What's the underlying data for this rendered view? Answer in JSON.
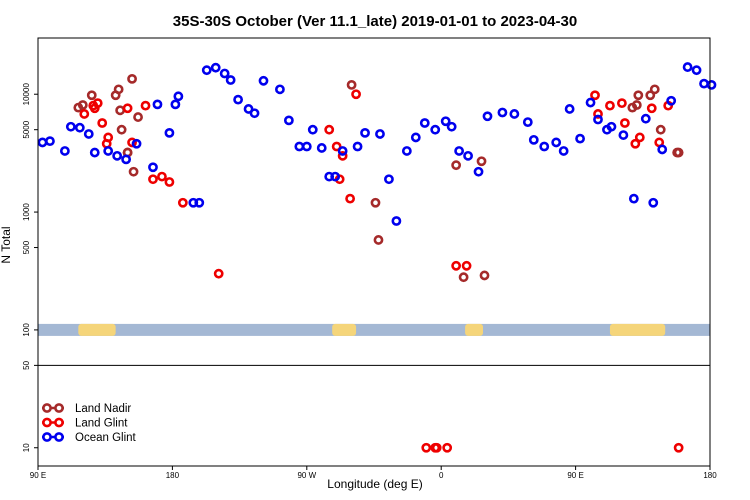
{
  "chart_data": {
    "type": "scatter",
    "title": "35S-30S October (Ver 11.1_late)   2019-01-01 to 2023-04-30",
    "xlabel": "Longitude (deg E)",
    "ylabel": "N Total",
    "x_axis_start_deg": 90,
    "x_axis_span_deg": 450,
    "xlim": [
      90,
      540
    ],
    "ylim": [
      7,
      30000
    ],
    "y_scale": "log",
    "x_ticks": [
      {
        "value": 90,
        "label": "90 E"
      },
      {
        "value": 180,
        "label": "180"
      },
      {
        "value": 270,
        "label": "90 W"
      },
      {
        "value": 360,
        "label": "0"
      },
      {
        "value": 450,
        "label": "90 E"
      },
      {
        "value": 540,
        "label": "180"
      }
    ],
    "y_ticks": [
      {
        "value": 10,
        "label": "10"
      },
      {
        "value": 50,
        "label": "50"
      },
      {
        "value": 100,
        "label": "100"
      },
      {
        "value": 500,
        "label": "500"
      },
      {
        "value": 1000,
        "label": "1000"
      },
      {
        "value": 5000,
        "label": "5000"
      },
      {
        "value": 10000,
        "label": "10000"
      }
    ],
    "divider_y": 50,
    "coastline_y": 100,
    "coastline_colors": {
      "ocean": "#a4b8d4",
      "land": "#f5d57a"
    },
    "land_segments": [
      [
        117,
        142
      ],
      [
        287,
        303
      ],
      [
        376,
        388
      ],
      [
        473,
        510
      ]
    ],
    "legend_position": "bottom-left",
    "series": [
      {
        "name": "Land Nadir",
        "color": "#a52a2a",
        "x": [
          117,
          120,
          126,
          142,
          144,
          145,
          146,
          150,
          150,
          153,
          154,
          157,
          300,
          316,
          318,
          370,
          375,
          387,
          389,
          488,
          491,
          492,
          500,
          503,
          507,
          518,
          519
        ],
        "y": [
          7700,
          8100,
          9800,
          9800,
          11000,
          7300,
          5000,
          3200,
          3200,
          13500,
          2200,
          6400,
          12000,
          1200,
          580,
          2500,
          280,
          2700,
          290,
          7700,
          8100,
          9800,
          9800,
          11000,
          5000,
          3200,
          3200
        ]
      },
      {
        "name": "Land Glint",
        "color": "#ee0000",
        "x": [
          121,
          127,
          128,
          130,
          133,
          136,
          137,
          150,
          153,
          162,
          167,
          173,
          178,
          187,
          211,
          285,
          290,
          292,
          294,
          299,
          303,
          350,
          356,
          357,
          364,
          370,
          377,
          463,
          465,
          473,
          481,
          483,
          490,
          493,
          501,
          506,
          512,
          519
        ],
        "y": [
          6800,
          8000,
          7600,
          8400,
          5700,
          3800,
          4300,
          7600,
          3900,
          8000,
          1900,
          2000,
          1800,
          1200,
          300,
          5000,
          3600,
          1900,
          3000,
          1300,
          10000,
          10,
          10,
          10,
          10,
          350,
          350,
          9800,
          6800,
          8000,
          8400,
          5700,
          3800,
          4300,
          7600,
          3900,
          8000,
          10
        ]
      },
      {
        "name": "Ocean Glint",
        "color": "#0000ee",
        "x": [
          93,
          98,
          108,
          112,
          118,
          124,
          128,
          137,
          143,
          149,
          156,
          167,
          170,
          178,
          182,
          184,
          194,
          198,
          203,
          209,
          215,
          219,
          224,
          231,
          235,
          241,
          252,
          258,
          265,
          270,
          274,
          280,
          285,
          289,
          294,
          304,
          309,
          319,
          325,
          330,
          337,
          343,
          349,
          356,
          363,
          367,
          372,
          378,
          385,
          391,
          401,
          409,
          418,
          422,
          429,
          437,
          442,
          446,
          453,
          460,
          465,
          471,
          474,
          482,
          489,
          497,
          502,
          508,
          514,
          525,
          531,
          536,
          541
        ],
        "y": [
          3900,
          4000,
          3300,
          5300,
          5200,
          4600,
          3200,
          3300,
          3000,
          2800,
          3800,
          2400,
          8200,
          4700,
          8200,
          9600,
          1200,
          1200,
          16000,
          16800,
          15000,
          13200,
          9000,
          7500,
          6900,
          13000,
          11000,
          6000,
          3600,
          3600,
          5000,
          3500,
          2000,
          2000,
          3300,
          3600,
          4700,
          4600,
          1900,
          840,
          3300,
          4300,
          5700,
          5000,
          5900,
          5300,
          3300,
          3000,
          2200,
          6500,
          7000,
          6800,
          5800,
          4100,
          3600,
          3900,
          3300,
          7500,
          4200,
          8500,
          6100,
          5000,
          5300,
          4500,
          1300,
          6200,
          1200,
          3400,
          8800,
          17000,
          16000,
          12300,
          12000
        ]
      }
    ]
  }
}
